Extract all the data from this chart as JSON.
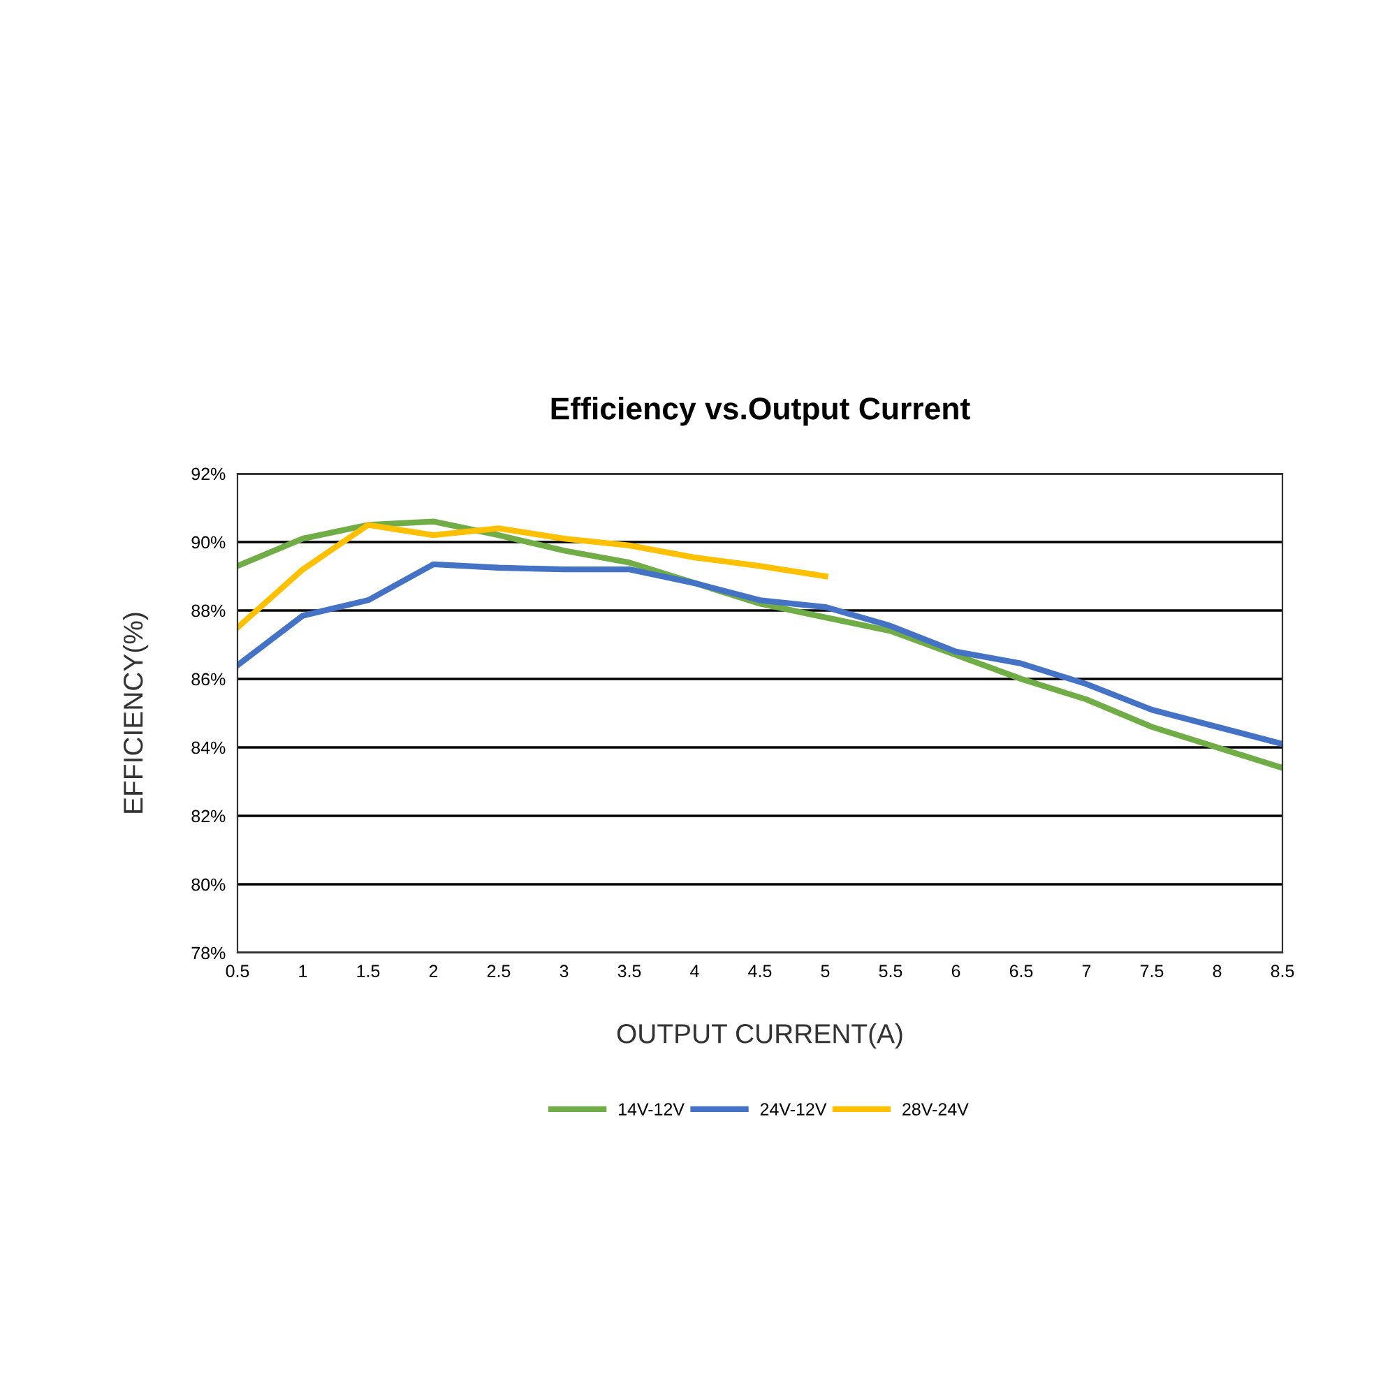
{
  "chart_data": {
    "type": "line",
    "title": "Efficiency vs.Output Current",
    "xlabel": "OUTPUT CURRENT(A)",
    "ylabel": "EFFICIENCY(%)",
    "x": [
      0.5,
      1,
      1.5,
      2,
      2.5,
      3,
      3.5,
      4,
      4.5,
      5,
      5.5,
      6,
      6.5,
      7,
      7.5,
      8,
      8.5
    ],
    "series": [
      {
        "name": "14V-12V",
        "color": "#70ad47",
        "values": [
          89.3,
          90.1,
          90.5,
          90.6,
          90.2,
          89.75,
          89.4,
          88.8,
          88.2,
          87.8,
          87.4,
          86.7,
          86.0,
          85.4,
          84.6,
          84.0,
          83.4
        ]
      },
      {
        "name": "24V-12V",
        "color": "#4472c4",
        "values": [
          86.4,
          87.85,
          88.3,
          89.35,
          89.25,
          89.2,
          89.2,
          88.8,
          88.3,
          88.1,
          87.55,
          86.8,
          86.45,
          85.85,
          85.1,
          84.6,
          84.1
        ]
      },
      {
        "name": "28V-24V",
        "color": "#ffc000",
        "x": [
          0.5,
          1,
          1.5,
          2,
          2.5,
          3,
          3.5,
          4,
          4.5,
          5
        ],
        "values": [
          87.5,
          89.2,
          90.5,
          90.2,
          90.4,
          90.1,
          89.9,
          89.55,
          89.3,
          89.0
        ]
      }
    ],
    "xlim": [
      0.5,
      8.5
    ],
    "xticks": [
      0.5,
      1,
      1.5,
      2,
      2.5,
      3,
      3.5,
      4,
      4.5,
      5,
      5.5,
      6,
      6.5,
      7,
      7.5,
      8,
      8.5
    ],
    "ylim": [
      78,
      92
    ],
    "yticks": [
      {
        "value": 78,
        "label": "78%"
      },
      {
        "value": 80,
        "label": "80%"
      },
      {
        "value": 82,
        "label": "82%"
      },
      {
        "value": 84,
        "label": "84%"
      },
      {
        "value": 86,
        "label": "86%"
      },
      {
        "value": 88,
        "label": "88%"
      },
      {
        "value": 90,
        "label": "90%"
      },
      {
        "value": 92,
        "label": "92%"
      }
    ],
    "grid": "y",
    "legend": "bottom",
    "marker": "none",
    "line_style": "solid"
  }
}
